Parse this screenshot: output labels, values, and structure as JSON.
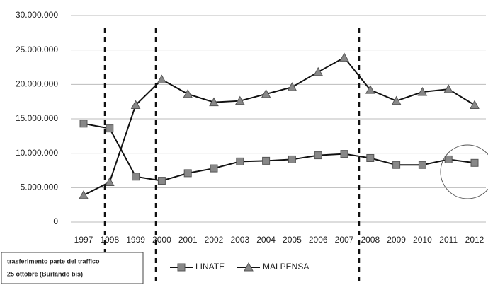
{
  "chart_data": {
    "type": "line",
    "categories": [
      "1997",
      "1998",
      "1999",
      "2000",
      "2001",
      "2002",
      "2003",
      "2004",
      "2005",
      "2006",
      "2007",
      "2008",
      "2009",
      "2010",
      "2011",
      "2012"
    ],
    "series": [
      {
        "name": "LINATE",
        "color": "#555555",
        "marker": "square",
        "values": [
          14300000,
          13600000,
          6600000,
          6000000,
          7100000,
          7800000,
          8800000,
          8900000,
          9100000,
          9700000,
          9900000,
          9300000,
          8300000,
          8300000,
          9100000,
          8600000
        ]
      },
      {
        "name": "MALPENSA",
        "color": "#555555",
        "marker": "triangle",
        "values": [
          3900000,
          5800000,
          17000000,
          20700000,
          18600000,
          17400000,
          17600000,
          18600000,
          19600000,
          21800000,
          23900000,
          19200000,
          17600000,
          18900000,
          19300000,
          17000000
        ]
      }
    ],
    "ylim": [
      0,
      30000000
    ],
    "yticks": [
      0,
      {
        "value": 5000000,
        "label": "5.000.000"
      },
      {
        "value": 10000000,
        "label": "10.000.000"
      },
      {
        "value": 15000000,
        "label": "15.000.000"
      },
      {
        "value": 20000000,
        "label": "20.000.000"
      },
      {
        "value": 25000000,
        "label": "25.000.000"
      },
      {
        "value": 30000000,
        "label": "30.000.000"
      }
    ],
    "grid": true,
    "annotation": {
      "line1": "trasferimento parte del traffico",
      "line2": "25 ottobre (Burlando bis)"
    }
  }
}
